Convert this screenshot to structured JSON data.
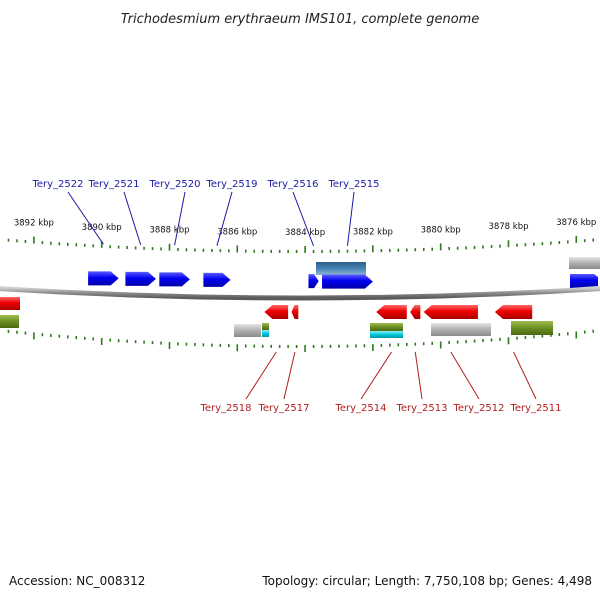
{
  "title": "Trichodesmium erythraeum IMS101, complete genome",
  "accession": "Accession: NC_008312",
  "topology": "Topology: circular; Length: 7,750,108 bp; Genes: 4,498",
  "colors": {
    "forward_gene": "#0000ee",
    "reverse_gene": "#ee0000",
    "forward_label": "#1a1aa6",
    "reverse_label": "#b21e1e",
    "backbone": "#8c8c8c",
    "tick": "#2d7a1a",
    "track_steelblue": "#4682b4",
    "track_gray": "#a8a8a8",
    "track_olive": "#6b8e23",
    "track_cyan": "#00c8d8"
  },
  "scale_kbp": [
    {
      "label": "3892 kbp",
      "pos": 3892
    },
    {
      "label": "3890 kbp",
      "pos": 3890
    },
    {
      "label": "3888 kbp",
      "pos": 3888
    },
    {
      "label": "3886 kbp",
      "pos": 3886
    },
    {
      "label": "3884 kbp",
      "pos": 3884
    },
    {
      "label": "3882 kbp",
      "pos": 3882
    },
    {
      "label": "3880 kbp",
      "pos": 3880
    },
    {
      "label": "3878 kbp",
      "pos": 3878
    },
    {
      "label": "3876 kbp",
      "pos": 3876
    }
  ],
  "forward_genes": [
    {
      "label": "Tery_2522",
      "start": 3890.4,
      "end": 3889.5
    },
    {
      "label": "Tery_2521",
      "start": 3889.3,
      "end": 3888.4
    },
    {
      "label": "Tery_2520",
      "start": 3888.3,
      "end": 3887.4
    },
    {
      "label": "Tery_2519",
      "start": 3887.0,
      "end": 3886.2
    },
    {
      "label": "Tery_2516",
      "start": 3883.9,
      "end": 3883.6
    },
    {
      "label": "Tery_2515",
      "start": 3883.5,
      "end": 3882.0
    }
  ],
  "reverse_genes": [
    {
      "label": "Tery_2518",
      "start": 3885.2,
      "end": 3884.5
    },
    {
      "label": "Tery_2517",
      "start": 3884.4,
      "end": 3884.2
    },
    {
      "label": "Tery_2514",
      "start": 3881.9,
      "end": 3881.0
    },
    {
      "label": "Tery_2513",
      "start": 3880.9,
      "end": 3880.6
    },
    {
      "label": "Tery_2512",
      "start": 3880.5,
      "end": 3878.9
    },
    {
      "label": "Tery_2511",
      "start": 3878.4,
      "end": 3877.3
    }
  ]
}
